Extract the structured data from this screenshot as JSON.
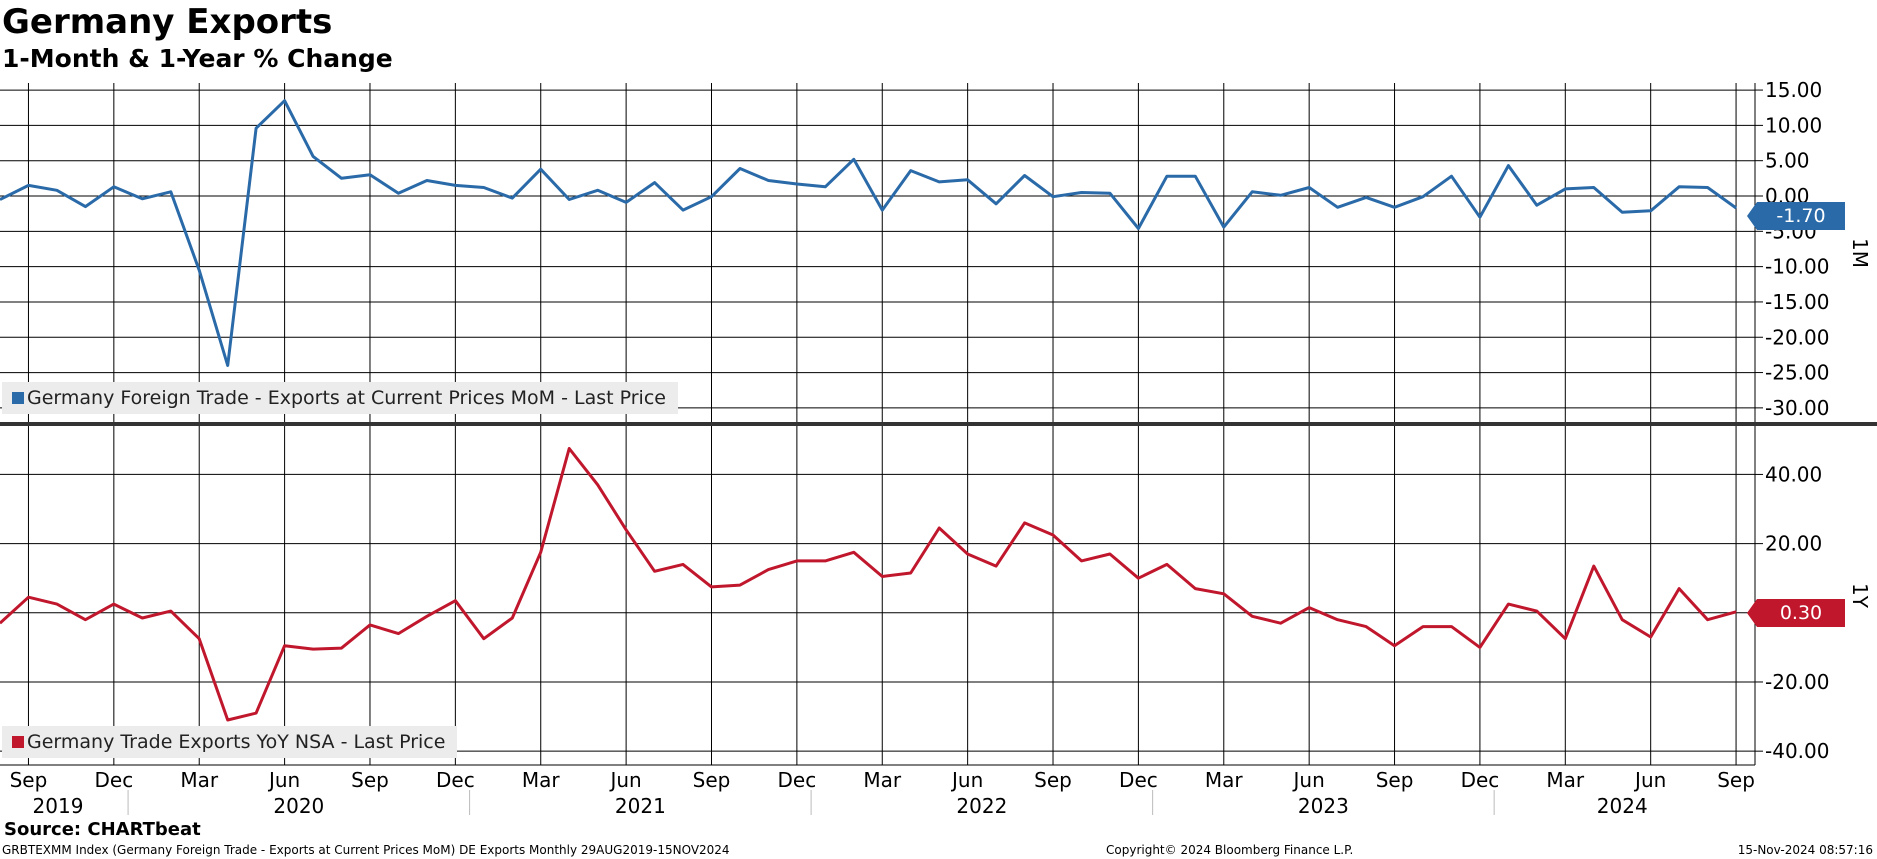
{
  "header": {
    "title": "Germany Exports",
    "subtitle": "1-Month & 1-Year % Change"
  },
  "footer": {
    "source": "Source: CHARTbeat",
    "ticker": "GRBTEXMM Index (Germany Foreign Trade - Exports at Current Prices MoM) DE Exports  Monthly 29AUG2019-15NOV2024",
    "copyright": "Copyright© 2024 Bloomberg Finance L.P.",
    "timestamp": "15-Nov-2024 08:57:16"
  },
  "colors": {
    "mom": "#2a6aa8",
    "yoy": "#c0172d",
    "grid": "#000000"
  },
  "tags": {
    "mom": "-1.70",
    "yoy": "0.30"
  },
  "panel_labels": {
    "top": "1M",
    "bottom": "1Y"
  },
  "legends": {
    "mom": "Germany Foreign Trade - Exports at Current Prices MoM - Last Price",
    "yoy": "Germany Trade Exports YoY NSA - Last Price"
  },
  "chart_data": [
    {
      "type": "line",
      "panel": "top",
      "title": "Germany Exports",
      "subtitle": "1-Month & 1-Year % Change",
      "ylabel": "1M",
      "ylim": [
        -32,
        16
      ],
      "yticks": [
        "15.00",
        "10.00",
        "5.00",
        "0.00",
        "-5.00",
        "-10.00",
        "-15.00",
        "-20.00",
        "-25.00",
        "-30.00"
      ],
      "yticks_values": [
        15,
        10,
        5,
        0,
        -5,
        -10,
        -15,
        -20,
        -25,
        -30
      ],
      "x_range": [
        "2019-08",
        "2024-09"
      ],
      "x_month_ticks": [
        "Sep",
        "Dec",
        "Mar",
        "Jun",
        "Sep",
        "Dec",
        "Mar",
        "Jun",
        "Sep",
        "Dec",
        "Mar",
        "Jun",
        "Sep",
        "Dec",
        "Mar",
        "Jun",
        "Sep",
        "Dec",
        "Mar",
        "Jun",
        "Sep"
      ],
      "x_year_labels": [
        "2019",
        "2020",
        "2021",
        "2022",
        "2023",
        "2024"
      ],
      "legend": "bottom-left",
      "grid": true,
      "series": [
        {
          "name": "Germany Foreign Trade - Exports at Current Prices MoM - Last Price",
          "last_value": "-1.70",
          "start": "2019-08",
          "values": [
            -0.5,
            1.5,
            0.8,
            -1.5,
            1.3,
            -0.4,
            0.6,
            -10.5,
            -24.0,
            9.6,
            13.5,
            5.6,
            2.5,
            3.0,
            0.4,
            2.2,
            1.5,
            1.2,
            -0.3,
            3.8,
            -0.5,
            0.8,
            -0.9,
            1.9,
            -2.0,
            -0.1,
            3.9,
            2.2,
            1.7,
            1.3,
            5.2,
            -2.0,
            3.6,
            2.0,
            2.3,
            -1.1,
            2.9,
            -0.1,
            0.5,
            0.4,
            -4.6,
            2.8,
            2.8,
            -4.4,
            0.6,
            0.1,
            1.2,
            -1.6,
            -0.2,
            -1.6,
            -0.1,
            2.8,
            -3.0,
            4.3,
            -1.3,
            1.0,
            1.2,
            -2.3,
            -2.1,
            1.3,
            1.2,
            -1.7
          ]
        }
      ]
    },
    {
      "type": "line",
      "panel": "bottom",
      "ylabel": "1Y",
      "ylim": [
        -44,
        54
      ],
      "yticks": [
        "40.00",
        "20.00",
        "0.00",
        "-20.00",
        "-40.00"
      ],
      "yticks_values": [
        40,
        20,
        0,
        -20,
        -40
      ],
      "x_range": [
        "2019-08",
        "2024-09"
      ],
      "legend": "bottom-left",
      "grid": true,
      "series": [
        {
          "name": "Germany Trade Exports YoY NSA - Last Price",
          "last_value": "0.30",
          "start": "2019-08",
          "values": [
            -3.0,
            4.5,
            2.5,
            -2.0,
            2.5,
            -1.5,
            0.5,
            -7.5,
            -31.0,
            -29.0,
            -9.5,
            -10.5,
            -10.2,
            -3.5,
            -6.0,
            -1.0,
            3.5,
            -7.5,
            -1.5,
            17.5,
            47.5,
            37.0,
            24.0,
            12.0,
            14.0,
            7.5,
            8.0,
            12.5,
            15.0,
            15.0,
            17.5,
            10.5,
            11.5,
            24.5,
            17.0,
            13.5,
            26.0,
            22.5,
            15.0,
            17.0,
            10.0,
            14.0,
            7.0,
            5.5,
            -1.0,
            -3.0,
            1.5,
            -2.0,
            -4.0,
            -9.5,
            -4.0,
            -4.0,
            -10.0,
            2.5,
            0.5,
            -7.5,
            13.5,
            -2.0,
            -7.0,
            7.0,
            -2.0,
            0.3
          ]
        }
      ]
    }
  ]
}
